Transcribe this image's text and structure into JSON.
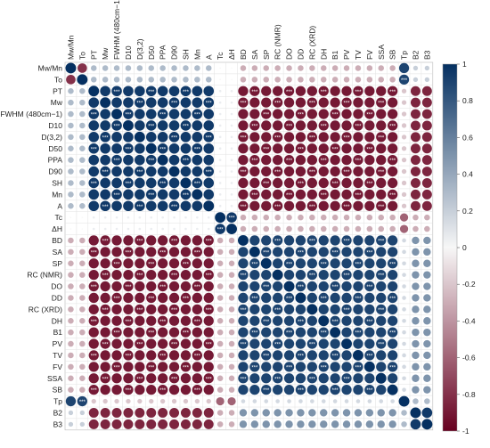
{
  "chart_data": {
    "type": "heatmap",
    "subtype": "correlation circles (upper and lower triangle), significance stars",
    "variables": [
      "Mw/Mn",
      "To",
      "PT",
      "Mw",
      "FWHM (480cm−1)",
      "D10",
      "D(3,2)",
      "D50",
      "PPA",
      "D90",
      "SH",
      "Mn",
      "A",
      "Tc",
      "ΔH",
      "BD",
      "SA",
      "SP",
      "RC (NMR)",
      "DO",
      "DD",
      "RC (XRD)",
      "DH",
      "B1",
      "PV",
      "TV",
      "FV",
      "SSA",
      "SB",
      "Tp",
      "B2",
      "B3"
    ],
    "groups": {
      "A": [
        "PT",
        "Mw",
        "FWHM (480cm−1)",
        "D10",
        "D(3,2)",
        "D50",
        "PPA",
        "D90",
        "SH",
        "Mn",
        "A"
      ],
      "B": [
        "BD",
        "SA",
        "SP",
        "RC (NMR)",
        "DO",
        "DD",
        "RC (XRD)",
        "DH",
        "B1",
        "PV",
        "TV",
        "FV",
        "SSA",
        "SB"
      ]
    },
    "correlation_levels": {
      "within_group_A": 0.95,
      "within_group_B": 0.9,
      "group_A_vs_group_B": -0.9,
      "Tc_vs_ΔH": 0.95,
      "Tc_ΔH_vs_group_A": 0.05,
      "Tc_ΔH_vs_group_B": -0.3,
      "Mw/Mn_vs_To": -0.8,
      "Mw/Mn_To_vs_group_A": 0.3,
      "Mw/Mn_To_vs_group_B": -0.3,
      "Tp_vs_Mw/Mn": 0.9,
      "B2_B3_vs_group_A": -0.85,
      "B2_B3_vs_group_B": 0.5
    },
    "colorbar": {
      "ticks": [
        "1",
        "0.8",
        "0.6",
        "0.4",
        "0.2",
        "0",
        "-0.2",
        "-0.4",
        "-0.6",
        "-0.8",
        "-1"
      ],
      "range": [
        -1,
        1
      ],
      "colors": {
        "positive": "#053061",
        "mid": "#f7f7f7",
        "negative": "#67001f"
      }
    },
    "legend_position": "right",
    "grid": true
  }
}
